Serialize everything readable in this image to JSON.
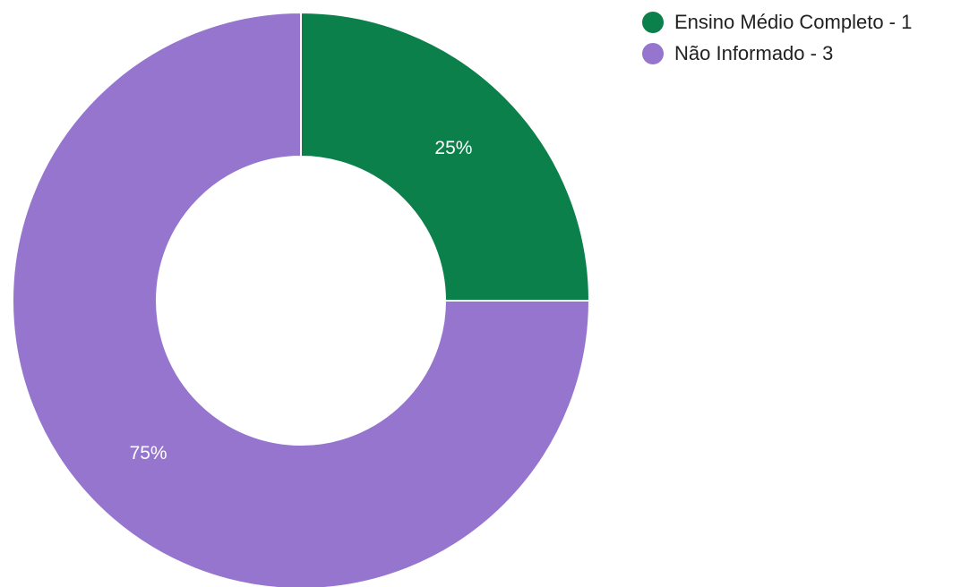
{
  "chart_data": {
    "type": "pie",
    "donut": true,
    "slices": [
      {
        "label": "Ensino Médio Completo - 1",
        "value": 1,
        "percent_label": "25%",
        "color": "#0b804b"
      },
      {
        "label": "Não Informado - 3",
        "value": 3,
        "percent_label": "75%",
        "color": "#9575cd"
      }
    ],
    "legend_position": "top-right",
    "start_angle_deg": 0,
    "direction": "clockwise"
  }
}
